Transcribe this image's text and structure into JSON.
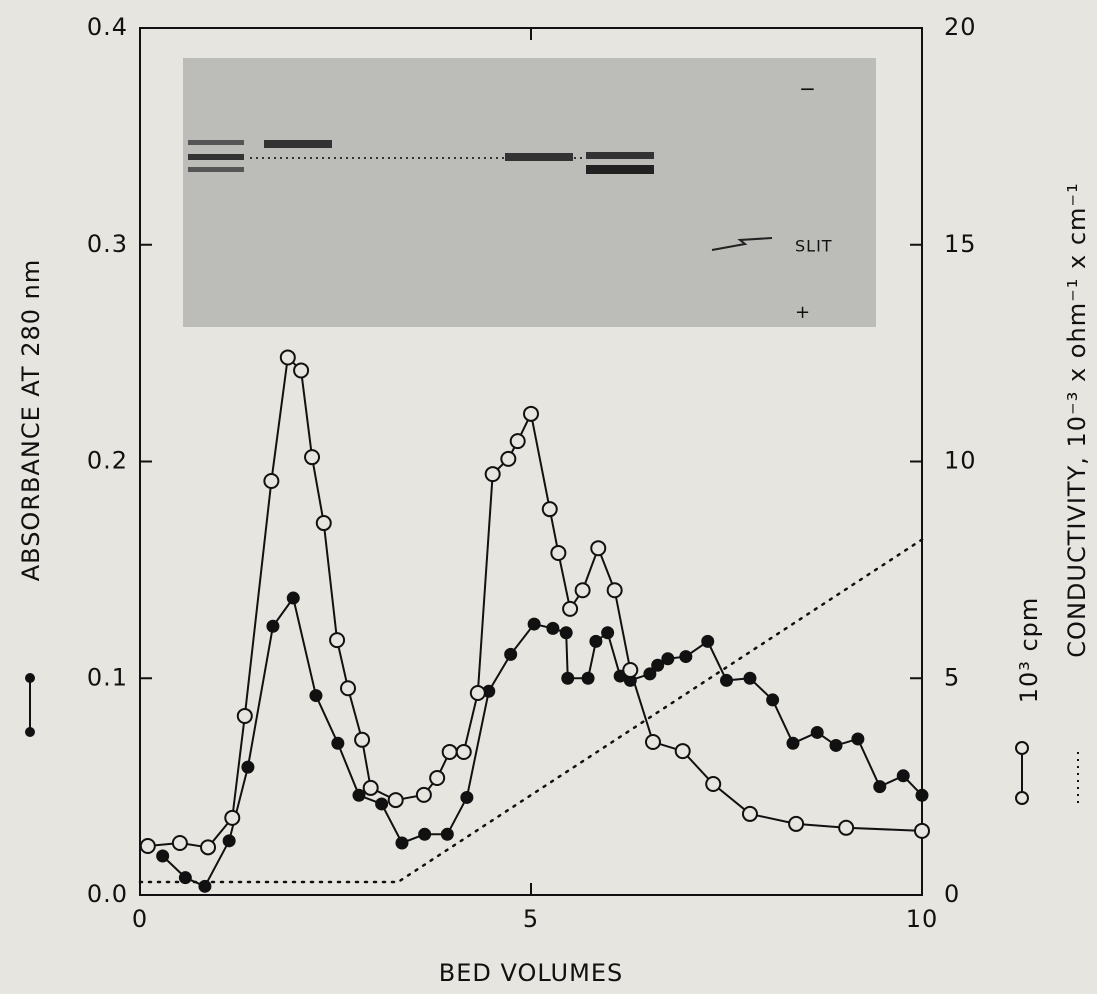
{
  "chart_data": {
    "type": "line",
    "xlabel": "BED VOLUMES",
    "xlim": [
      0,
      10
    ],
    "xticks": [
      0,
      5,
      10
    ],
    "ylim": [
      0,
      0.4
    ],
    "yticks": [
      {
        "value": 0,
        "label": "0.0"
      },
      0.1,
      0.2,
      0.3,
      0.4
    ],
    "y2lim": [
      0,
      20
    ],
    "y2ticks": [
      0,
      5,
      10,
      15,
      20
    ],
    "annotations": [
      "−",
      "SLIT",
      "+"
    ],
    "series": [
      {
        "name": "ABSORBANCE AT 280 nm",
        "color": "#111111",
        "marker": "filled",
        "linestyle": "solid",
        "axis": "y",
        "x": [
          0.29,
          0.58,
          0.83,
          1.14,
          1.38,
          1.7,
          1.96,
          2.25,
          2.53,
          2.8,
          3.09,
          3.35,
          3.64,
          3.93,
          4.18,
          4.46,
          4.74,
          5.04,
          5.28,
          5.45,
          5.47,
          5.73,
          5.83,
          5.98,
          6.14,
          6.27,
          6.52,
          6.62,
          6.75,
          6.98,
          7.26,
          7.5,
          7.8,
          8.09,
          8.35,
          8.66,
          8.9,
          9.18,
          9.46,
          9.76,
          10.0
        ],
        "values": [
          0.018,
          0.008,
          0.004,
          0.025,
          0.059,
          0.124,
          0.137,
          0.092,
          0.07,
          0.046,
          0.042,
          0.024,
          0.028,
          0.028,
          0.045,
          0.094,
          0.111,
          0.125,
          0.123,
          0.121,
          0.1,
          0.1,
          0.117,
          0.121,
          0.101,
          0.099,
          0.102,
          0.106,
          0.109,
          0.11,
          0.117,
          0.099,
          0.1,
          0.09,
          0.07,
          0.075,
          0.069,
          0.072,
          0.05,
          0.055,
          0.046
        ]
      },
      {
        "name": "10³ cpm",
        "color": "#111111",
        "marker": "open",
        "linestyle": "solid",
        "axis": "y2",
        "x": [
          0.1,
          0.51,
          0.87,
          1.18,
          1.34,
          1.68,
          1.89,
          2.06,
          2.2,
          2.35,
          2.52,
          2.66,
          2.84,
          2.95,
          3.27,
          3.63,
          3.8,
          3.96,
          4.14,
          4.32,
          4.51,
          4.71,
          4.83,
          5.0,
          5.24,
          5.35,
          5.5,
          5.66,
          5.86,
          6.07,
          6.27,
          6.56,
          6.94,
          7.33,
          7.8,
          8.39,
          9.03,
          10.0
        ],
        "values": [
          1.13,
          1.2,
          1.1,
          1.78,
          4.13,
          9.55,
          12.4,
          12.1,
          10.1,
          8.58,
          5.88,
          4.77,
          3.58,
          2.47,
          2.19,
          2.31,
          2.7,
          3.3,
          3.3,
          4.66,
          9.71,
          10.06,
          10.47,
          11.1,
          8.9,
          7.89,
          6.6,
          7.03,
          8.0,
          7.03,
          5.19,
          3.53,
          3.32,
          2.56,
          1.87,
          1.64,
          1.55,
          1.48
        ]
      },
      {
        "name": "CONDUCTIVITY, 10⁻³ x ohm⁻¹ x cm⁻¹",
        "color": "#111111",
        "marker": "none",
        "linestyle": "dotted",
        "axis": "y2",
        "x": [
          0,
          3.3,
          10
        ],
        "values": [
          0.3,
          0.3,
          8.2
        ]
      }
    ]
  }
}
